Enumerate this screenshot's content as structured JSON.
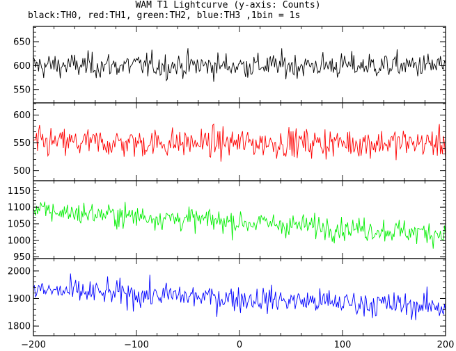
{
  "title": "WAM T1 Lightcurve (y-axis: Counts)",
  "subtitle": "black:TH0, red:TH1, green:TH2, blue:TH3 ,1bin = 1s",
  "chart_data": {
    "type": "line",
    "x_range": [
      -200,
      200
    ],
    "x_ticks": [
      -200,
      -100,
      0,
      100,
      200
    ],
    "bin_seconds": 1,
    "panels": [
      {
        "name": "TH0",
        "color": "#000000",
        "ylim": [
          522,
          682
        ],
        "yticks": [
          550,
          600,
          650
        ],
        "mean": 600,
        "noise": 24,
        "trend": 0
      },
      {
        "name": "TH1",
        "color": "#ff0000",
        "ylim": [
          482,
          622
        ],
        "yticks": [
          500,
          550,
          600
        ],
        "mean": 550,
        "noise": 24,
        "trend": 0
      },
      {
        "name": "TH2",
        "color": "#00ee00",
        "ylim": [
          945,
          1180
        ],
        "yticks": [
          950,
          1000,
          1050,
          1100,
          1150
        ],
        "mean_start": 1090,
        "mean_end": 1020,
        "noise": 32
      },
      {
        "name": "TH3",
        "color": "#0000ff",
        "ylim": [
          1765,
          2045
        ],
        "yticks": [
          1800,
          1900,
          2000
        ],
        "mean_start": 1930,
        "mean_end": 1870,
        "noise": 42
      }
    ]
  }
}
